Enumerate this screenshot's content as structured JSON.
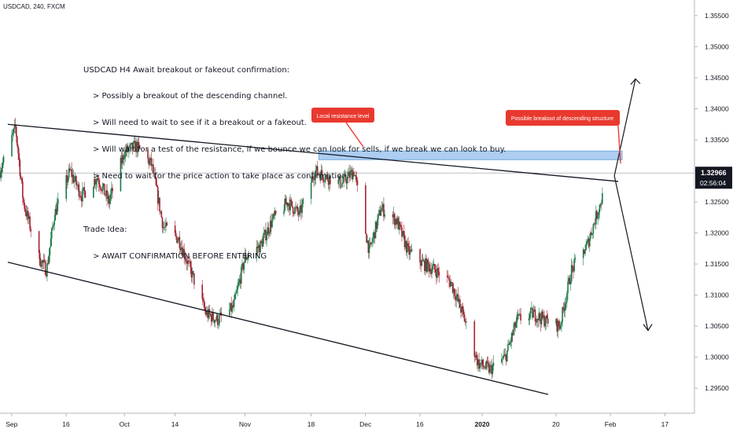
{
  "header": {
    "symbol": "USDCAD, 240, FXCM"
  },
  "idea_text": {
    "title": "USDCAD H4 Await breakout or fakeout confirmation:",
    "points": [
      "> Possibly a breakout of the descending channel.",
      "> Will need to wait to see if it a breakout or a fakeout.",
      "> Will wait for a test of the resistance, if we bounce we can look for sells, if we break we can look to buy.",
      "> Need to wait for the price action to take place as confirmation."
    ],
    "trade_idea_label": "Trade Idea:",
    "trade_idea_point": "> AWAIT CONFIRMATION BEFORE ENTERING"
  },
  "callouts": {
    "resistance": "Local resistance level",
    "breakout": "Possible breakout of descending structure"
  },
  "price_tag": {
    "price": "1.32966",
    "countdown": "02:56:04"
  },
  "colors": {
    "up": "#26a69a",
    "up_body": "#1b7a4b",
    "down": "#ef5350",
    "down_body": "#a32233",
    "callout": "#e9392f",
    "zone": "#5b9bd5",
    "zone_fill": "#9fc5ef",
    "price_tag": "#131722"
  },
  "chart_data": {
    "type": "candlestick",
    "symbol": "USDCAD",
    "timeframe": "240",
    "source": "FXCM",
    "ylim": [
      1.2925,
      1.3565
    ],
    "y_ticks": [
      "1.35500",
      "1.35000",
      "1.34500",
      "1.34000",
      "1.33500",
      "1.33000",
      "1.32500",
      "1.32000",
      "1.31500",
      "1.31000",
      "1.30500",
      "1.30000",
      "1.29500"
    ],
    "x_ticks": [
      "Sep",
      "16",
      "Oct",
      "14",
      "Nov",
      "18",
      "Dec",
      "16",
      "2020",
      "20",
      "Feb",
      "17"
    ],
    "last_price": 1.32966,
    "series": [
      {
        "name": "",
        "kind": "close_path",
        "values": [
          {
            "date": "2019-08-30",
            "close": 1.33
          },
          {
            "date": "2019-09-03",
            "close": 1.337
          },
          {
            "date": "2019-09-05",
            "close": 1.325
          },
          {
            "date": "2019-09-09",
            "close": 1.316
          },
          {
            "date": "2019-09-11",
            "close": 1.314
          },
          {
            "date": "2019-09-13",
            "close": 1.323
          },
          {
            "date": "2019-09-17",
            "close": 1.33
          },
          {
            "date": "2019-09-20",
            "close": 1.326
          },
          {
            "date": "2019-09-24",
            "close": 1.329
          },
          {
            "date": "2019-09-27",
            "close": 1.325
          },
          {
            "date": "2019-10-01",
            "close": 1.333
          },
          {
            "date": "2019-10-04",
            "close": 1.334
          },
          {
            "date": "2019-10-08",
            "close": 1.331
          },
          {
            "date": "2019-10-11",
            "close": 1.321
          },
          {
            "date": "2019-10-15",
            "close": 1.319
          },
          {
            "date": "2019-10-18",
            "close": 1.314
          },
          {
            "date": "2019-10-22",
            "close": 1.307
          },
          {
            "date": "2019-10-25",
            "close": 1.306
          },
          {
            "date": "2019-10-29",
            "close": 1.308
          },
          {
            "date": "2019-11-01",
            "close": 1.316
          },
          {
            "date": "2019-11-05",
            "close": 1.318
          },
          {
            "date": "2019-11-08",
            "close": 1.322
          },
          {
            "date": "2019-11-12",
            "close": 1.325
          },
          {
            "date": "2019-11-15",
            "close": 1.323
          },
          {
            "date": "2019-11-19",
            "close": 1.33
          },
          {
            "date": "2019-11-22",
            "close": 1.329
          },
          {
            "date": "2019-11-26",
            "close": 1.328
          },
          {
            "date": "2019-11-29",
            "close": 1.33
          },
          {
            "date": "2019-12-03",
            "close": 1.317
          },
          {
            "date": "2019-12-06",
            "close": 1.324
          },
          {
            "date": "2019-12-10",
            "close": 1.322
          },
          {
            "date": "2019-12-13",
            "close": 1.317
          },
          {
            "date": "2019-12-17",
            "close": 1.315
          },
          {
            "date": "2019-12-20",
            "close": 1.314
          },
          {
            "date": "2019-12-24",
            "close": 1.312
          },
          {
            "date": "2019-12-27",
            "close": 1.307
          },
          {
            "date": "2019-12-31",
            "close": 1.299
          },
          {
            "date": "2020-01-03",
            "close": 1.298
          },
          {
            "date": "2020-01-07",
            "close": 1.3
          },
          {
            "date": "2020-01-10",
            "close": 1.306
          },
          {
            "date": "2020-01-14",
            "close": 1.307
          },
          {
            "date": "2020-01-17",
            "close": 1.306
          },
          {
            "date": "2020-01-21",
            "close": 1.305
          },
          {
            "date": "2020-01-24",
            "close": 1.314
          },
          {
            "date": "2020-01-28",
            "close": 1.318
          },
          {
            "date": "2020-01-31",
            "close": 1.324
          },
          {
            "date": "2020-02-03",
            "close": 1.3297
          }
        ]
      }
    ],
    "annotations": [
      {
        "kind": "trendline",
        "from": {
          "date": "2019-09-01",
          "price": 1.3375
        },
        "to": {
          "date": "2020-02-05",
          "price": 1.3283
        }
      },
      {
        "kind": "trendline",
        "from": {
          "date": "2019-09-01",
          "price": 1.3153
        },
        "to": {
          "date": "2020-01-18",
          "price": 1.294
        }
      },
      {
        "kind": "zone",
        "from_date": "2019-11-20",
        "to_date": "2020-02-06",
        "price_low": 1.3318,
        "price_high": 1.3332
      },
      {
        "kind": "arrow",
        "direction": "up",
        "target_price": 1.3448
      },
      {
        "kind": "arrow",
        "direction": "down",
        "target_price": 1.3043
      }
    ]
  }
}
